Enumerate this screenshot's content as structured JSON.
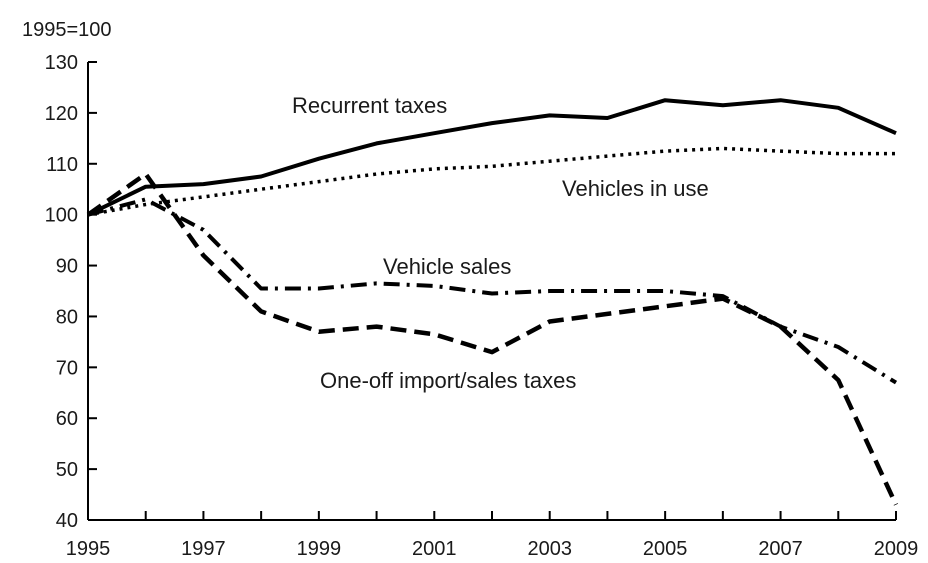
{
  "chart_data": {
    "type": "line",
    "title": "",
    "unit_label": "1995=100",
    "xlabel": "",
    "ylabel": "",
    "xlim": [
      1995,
      2009
    ],
    "ylim": [
      40,
      130
    ],
    "x_ticks": [
      1995,
      1997,
      1999,
      2001,
      2003,
      2005,
      2007,
      2009
    ],
    "y_ticks": [
      40,
      50,
      60,
      70,
      80,
      90,
      100,
      110,
      120,
      130
    ],
    "grid": false,
    "legend": "none (series labelled directly on chart)",
    "x": [
      1995,
      1996,
      1997,
      1998,
      1999,
      2000,
      2001,
      2002,
      2003,
      2004,
      2005,
      2006,
      2007,
      2008,
      2009
    ],
    "series": [
      {
        "name": "Recurrent taxes",
        "style": "solid",
        "values": [
          100,
          105.5,
          106,
          107.5,
          111,
          114,
          116,
          118,
          119.5,
          119,
          122.5,
          121.5,
          122.5,
          121,
          116
        ]
      },
      {
        "name": "Vehicles in use",
        "style": "dotted",
        "values": [
          100,
          102,
          103.5,
          105,
          106.5,
          108,
          109,
          109.5,
          110.5,
          111.5,
          112.5,
          113,
          112.5,
          112,
          112
        ]
      },
      {
        "name": "Vehicle sales",
        "style": "dashdot",
        "values": [
          100,
          103,
          97,
          85.5,
          85.5,
          86.5,
          86,
          84.5,
          85,
          85,
          85,
          84,
          78,
          74,
          67
        ]
      },
      {
        "name": "One-off import/sales taxes",
        "style": "dashed",
        "values": [
          100,
          108,
          92,
          81,
          77,
          78,
          76.5,
          73,
          79,
          80.5,
          82,
          83.5,
          78,
          67.5,
          43
        ]
      }
    ]
  }
}
